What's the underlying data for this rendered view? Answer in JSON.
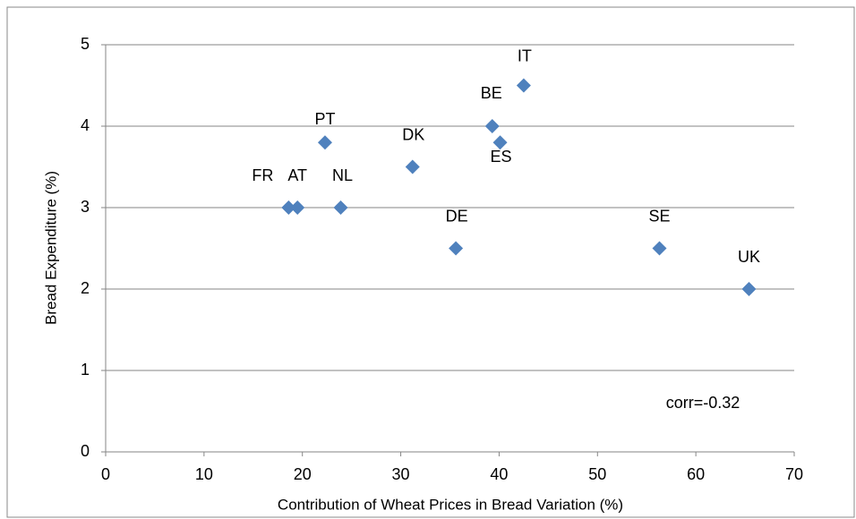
{
  "chart_data": {
    "type": "scatter",
    "x_label": "Contribution of Wheat Prices in Bread Variation  (%)",
    "y_label": "Bread Expenditure (%)",
    "annotation": "corr=-0.32",
    "series": [
      {
        "names": [
          "FR",
          "AT",
          "PT",
          "NL",
          "DK",
          "DE",
          "BE",
          "ES",
          "IT",
          "SE",
          "UK"
        ],
        "x": [
          18.6,
          19.5,
          22.3,
          23.9,
          31.2,
          35.6,
          39.3,
          40.1,
          42.5,
          56.3,
          65.4
        ],
        "values": [
          3.0,
          3.0,
          3.8,
          3.0,
          3.5,
          2.5,
          4.0,
          3.8,
          4.5,
          2.5,
          2.0
        ],
        "color": "#4f81bd"
      }
    ],
    "xlim": [
      0,
      70
    ],
    "xticks": [
      0,
      10,
      20,
      30,
      40,
      50,
      60,
      70
    ],
    "ylim": [
      0,
      5
    ],
    "yticks": [
      0,
      1,
      2,
      3,
      4,
      5
    ],
    "grid": true
  }
}
